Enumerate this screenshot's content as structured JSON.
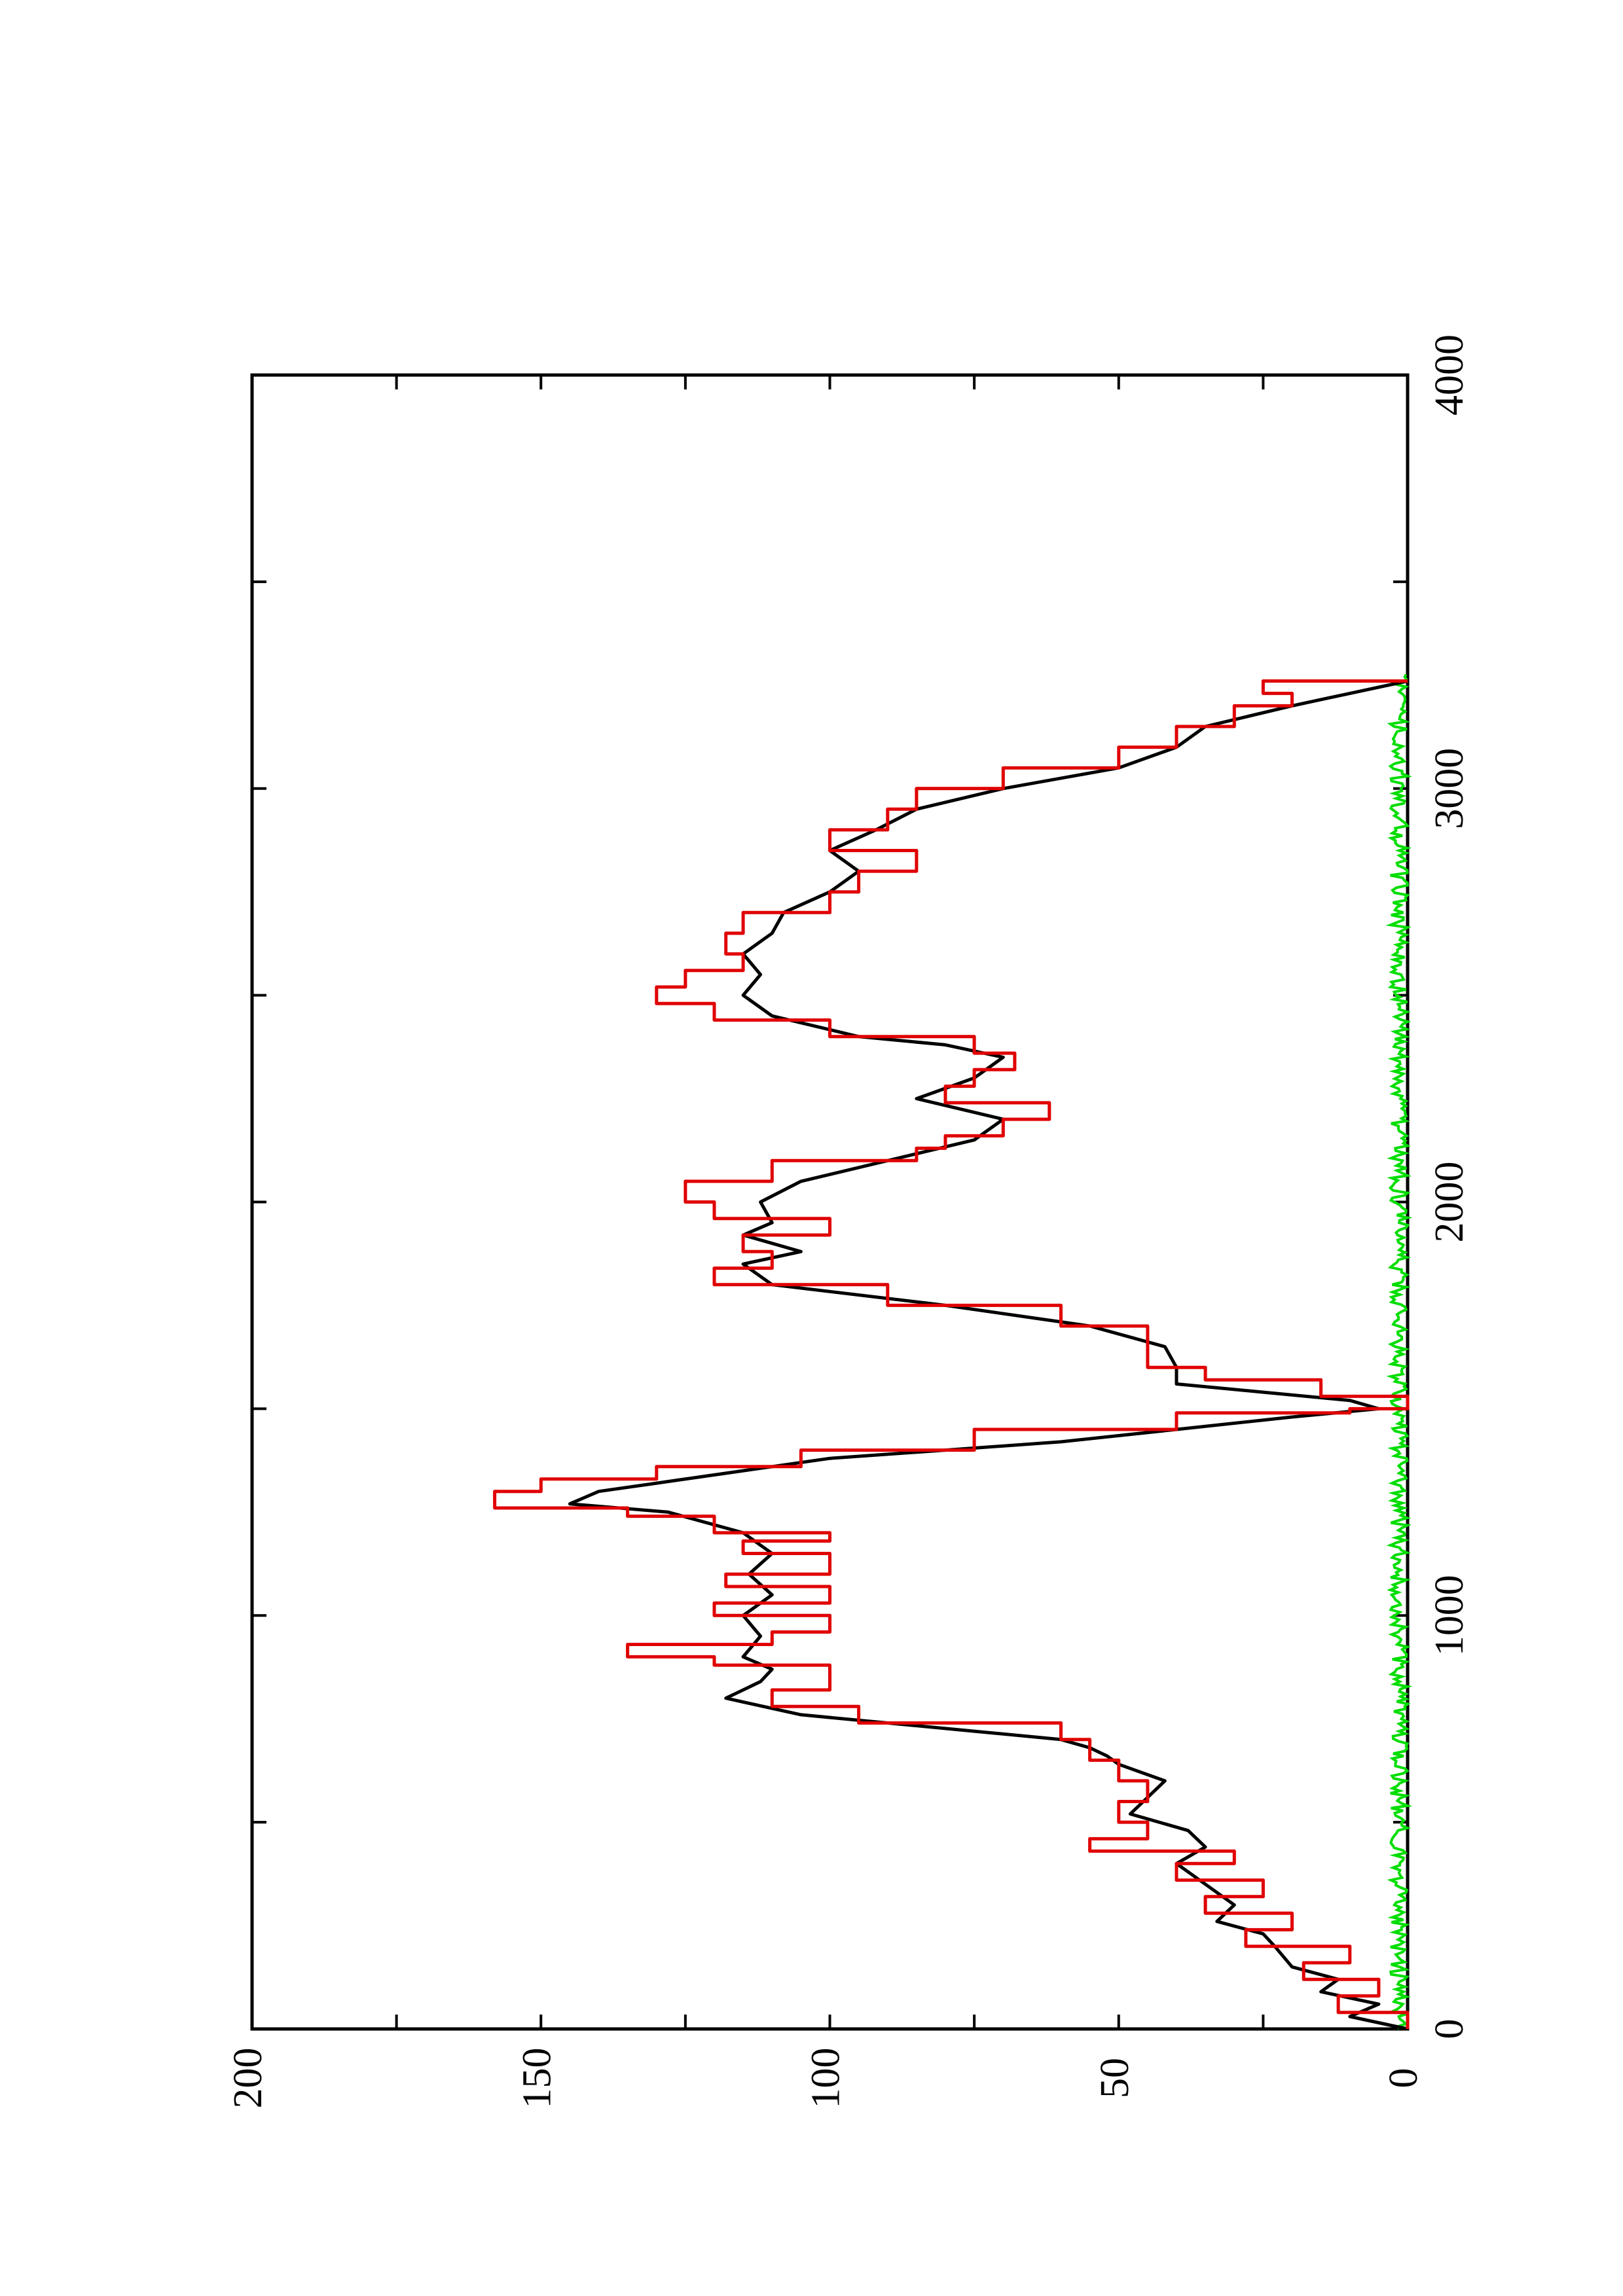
{
  "chart_data": {
    "type": "line",
    "orientation": "rotated-90-ccw",
    "title": "",
    "xlabel": "",
    "ylabel": "",
    "xlim": [
      0,
      4000
    ],
    "ylim": [
      0,
      200
    ],
    "x_ticks": [
      "0",
      "1000",
      "2000",
      "3000",
      "4000"
    ],
    "y_ticks": [
      "0",
      "50",
      "100",
      "150",
      "200"
    ],
    "grid": false,
    "legend": "none",
    "colors": {
      "black_series": "#000000",
      "red_series": "#e00000",
      "green_series": "#00dd00"
    },
    "series": [
      {
        "color": "#000000",
        "points": [
          [
            0,
            0
          ],
          [
            30,
            10
          ],
          [
            60,
            5
          ],
          [
            90,
            15
          ],
          [
            120,
            12
          ],
          [
            150,
            20
          ],
          [
            200,
            23
          ],
          [
            230,
            25
          ],
          [
            260,
            33
          ],
          [
            300,
            30
          ],
          [
            350,
            35
          ],
          [
            400,
            40
          ],
          [
            440,
            35
          ],
          [
            480,
            38
          ],
          [
            520,
            48
          ],
          [
            560,
            45
          ],
          [
            600,
            42
          ],
          [
            640,
            50
          ],
          [
            660,
            52
          ],
          [
            680,
            55
          ],
          [
            700,
            60
          ],
          [
            720,
            75
          ],
          [
            740,
            90
          ],
          [
            760,
            105
          ],
          [
            800,
            118
          ],
          [
            840,
            112
          ],
          [
            870,
            110
          ],
          [
            900,
            115
          ],
          [
            950,
            112
          ],
          [
            1000,
            115
          ],
          [
            1050,
            110
          ],
          [
            1100,
            114
          ],
          [
            1150,
            110
          ],
          [
            1200,
            115
          ],
          [
            1250,
            128
          ],
          [
            1270,
            145
          ],
          [
            1300,
            140
          ],
          [
            1320,
            130
          ],
          [
            1350,
            115
          ],
          [
            1380,
            100
          ],
          [
            1400,
            80
          ],
          [
            1420,
            60
          ],
          [
            1450,
            40
          ],
          [
            1480,
            20
          ],
          [
            1500,
            5
          ],
          [
            1520,
            10
          ],
          [
            1540,
            25
          ],
          [
            1560,
            40
          ],
          [
            1600,
            40
          ],
          [
            1650,
            42
          ],
          [
            1700,
            55
          ],
          [
            1750,
            80
          ],
          [
            1800,
            110
          ],
          [
            1850,
            115
          ],
          [
            1880,
            105
          ],
          [
            1920,
            115
          ],
          [
            1950,
            110
          ],
          [
            2000,
            112
          ],
          [
            2050,
            105
          ],
          [
            2100,
            90
          ],
          [
            2150,
            75
          ],
          [
            2200,
            70
          ],
          [
            2250,
            85
          ],
          [
            2300,
            75
          ],
          [
            2350,
            70
          ],
          [
            2380,
            80
          ],
          [
            2400,
            95
          ],
          [
            2450,
            110
          ],
          [
            2500,
            115
          ],
          [
            2550,
            112
          ],
          [
            2600,
            115
          ],
          [
            2650,
            110
          ],
          [
            2700,
            108
          ],
          [
            2750,
            100
          ],
          [
            2800,
            95
          ],
          [
            2850,
            100
          ],
          [
            2900,
            92
          ],
          [
            2950,
            85
          ],
          [
            3000,
            70
          ],
          [
            3050,
            50
          ],
          [
            3100,
            40
          ],
          [
            3150,
            35
          ],
          [
            3200,
            20
          ],
          [
            3230,
            10
          ],
          [
            3260,
            0
          ]
        ]
      },
      {
        "color": "#e00000",
        "points": [
          [
            0,
            0
          ],
          [
            40,
            12
          ],
          [
            80,
            5
          ],
          [
            120,
            18
          ],
          [
            160,
            10
          ],
          [
            200,
            28
          ],
          [
            240,
            20
          ],
          [
            280,
            35
          ],
          [
            320,
            25
          ],
          [
            360,
            40
          ],
          [
            400,
            30
          ],
          [
            430,
            55
          ],
          [
            460,
            45
          ],
          [
            500,
            50
          ],
          [
            550,
            45
          ],
          [
            600,
            50
          ],
          [
            650,
            55
          ],
          [
            700,
            60
          ],
          [
            740,
            95
          ],
          [
            780,
            110
          ],
          [
            820,
            100
          ],
          [
            880,
            120
          ],
          [
            900,
            135
          ],
          [
            930,
            110
          ],
          [
            960,
            100
          ],
          [
            1000,
            120
          ],
          [
            1030,
            100
          ],
          [
            1070,
            118
          ],
          [
            1100,
            100
          ],
          [
            1150,
            115
          ],
          [
            1180,
            100
          ],
          [
            1200,
            120
          ],
          [
            1240,
            135
          ],
          [
            1260,
            158
          ],
          [
            1300,
            150
          ],
          [
            1330,
            130
          ],
          [
            1360,
            105
          ],
          [
            1400,
            75
          ],
          [
            1450,
            40
          ],
          [
            1490,
            10
          ],
          [
            1500,
            0
          ],
          [
            1530,
            15
          ],
          [
            1570,
            35
          ],
          [
            1600,
            45
          ],
          [
            1650,
            45
          ],
          [
            1700,
            60
          ],
          [
            1750,
            90
          ],
          [
            1800,
            120
          ],
          [
            1840,
            110
          ],
          [
            1880,
            115
          ],
          [
            1920,
            100
          ],
          [
            1960,
            120
          ],
          [
            2000,
            125
          ],
          [
            2050,
            110
          ],
          [
            2100,
            85
          ],
          [
            2130,
            80
          ],
          [
            2160,
            70
          ],
          [
            2200,
            62
          ],
          [
            2240,
            80
          ],
          [
            2280,
            75
          ],
          [
            2320,
            68
          ],
          [
            2360,
            75
          ],
          [
            2400,
            100
          ],
          [
            2440,
            120
          ],
          [
            2480,
            130
          ],
          [
            2520,
            125
          ],
          [
            2560,
            115
          ],
          [
            2600,
            118
          ],
          [
            2650,
            115
          ],
          [
            2700,
            100
          ],
          [
            2750,
            95
          ],
          [
            2800,
            85
          ],
          [
            2850,
            100
          ],
          [
            2900,
            90
          ],
          [
            2950,
            85
          ],
          [
            3000,
            70
          ],
          [
            3050,
            50
          ],
          [
            3100,
            40
          ],
          [
            3150,
            30
          ],
          [
            3200,
            20
          ],
          [
            3230,
            25
          ],
          [
            3260,
            0
          ]
        ]
      },
      {
        "color": "#00dd00",
        "points": "noise band along y = 0 to 3 for x in [0, 3280]"
      }
    ]
  }
}
